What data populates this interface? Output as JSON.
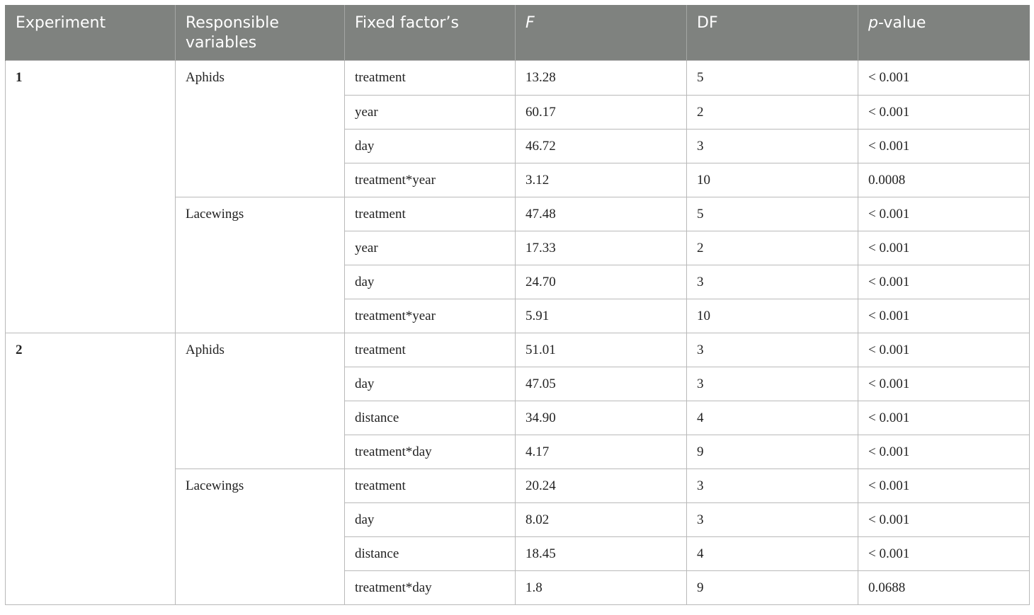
{
  "table": {
    "headers": {
      "experiment": "Experiment",
      "responsible_variables": "Responsible variables",
      "fixed_factor": "Fixed factor’s",
      "f": "F",
      "df": "DF",
      "p_prefix": "p",
      "p_suffix": "-value"
    },
    "groups": [
      {
        "experiment": "1",
        "variables": [
          {
            "name": "Aphids",
            "rows": [
              {
                "factor": "treatment",
                "f": "13.28",
                "df": "5",
                "p": "< 0.001"
              },
              {
                "factor": "year",
                "f": "60.17",
                "df": "2",
                "p": "< 0.001"
              },
              {
                "factor": "day",
                "f": "46.72",
                "df": "3",
                "p": "< 0.001"
              },
              {
                "factor": "treatment*year",
                "f": "3.12",
                "df": "10",
                "p": "0.0008"
              }
            ]
          },
          {
            "name": "Lacewings",
            "rows": [
              {
                "factor": "treatment",
                "f": "47.48",
                "df": "5",
                "p": "< 0.001"
              },
              {
                "factor": "year",
                "f": "17.33",
                "df": "2",
                "p": "< 0.001"
              },
              {
                "factor": "day",
                "f": "24.70",
                "df": "3",
                "p": "< 0.001"
              },
              {
                "factor": "treatment*year",
                "f": "5.91",
                "df": "10",
                "p": "< 0.001"
              }
            ]
          }
        ]
      },
      {
        "experiment": "2",
        "variables": [
          {
            "name": "Aphids",
            "rows": [
              {
                "factor": "treatment",
                "f": "51.01",
                "df": "3",
                "p": "< 0.001"
              },
              {
                "factor": "day",
                "f": "47.05",
                "df": "3",
                "p": "< 0.001"
              },
              {
                "factor": "distance",
                "f": "34.90",
                "df": "4",
                "p": "< 0.001"
              },
              {
                "factor": "treatment*day",
                "f": "4.17",
                "df": "9",
                "p": "< 0.001"
              }
            ]
          },
          {
            "name": "Lacewings",
            "rows": [
              {
                "factor": "treatment",
                "f": "20.24",
                "df": "3",
                "p": "< 0.001"
              },
              {
                "factor": "day",
                "f": "8.02",
                "df": "3",
                "p": "< 0.001"
              },
              {
                "factor": "distance",
                "f": "18.45",
                "df": "4",
                "p": "< 0.001"
              },
              {
                "factor": "treatment*day",
                "f": "1.8",
                "df": "9",
                "p": "0.0688"
              }
            ]
          }
        ]
      }
    ]
  }
}
